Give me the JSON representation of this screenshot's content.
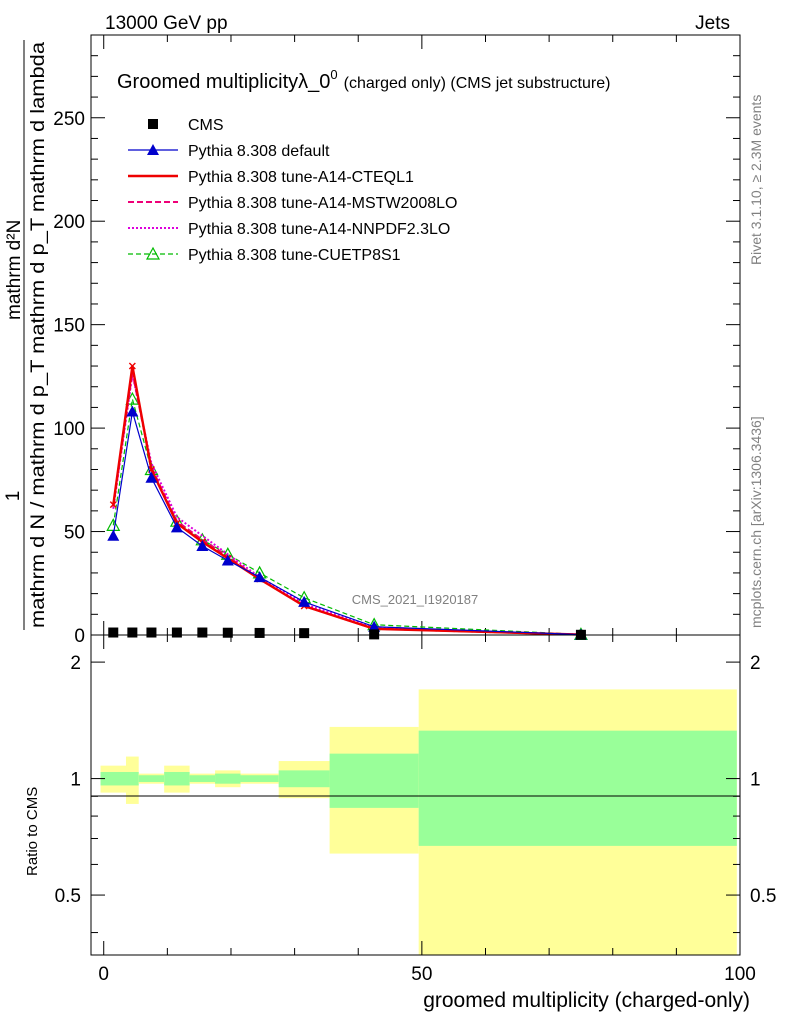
{
  "header": {
    "left": "13000 GeV pp",
    "right": "Jets"
  },
  "side": {
    "rivet": "Rivet 3.1.10, ≥ 2.3M events",
    "mcplots": "mcplots.cern.ch [arXiv:1306.3436]"
  },
  "watermark": "CMS_2021_I1920187",
  "colors": {
    "cms": "#000000",
    "default": "#0000cc",
    "cteql1": "#ee0000",
    "mstw": "#ee0077",
    "nnpdf": "#dd00dd",
    "cuetp8s1": "#00bb00",
    "band_inner": "#99ff99",
    "band_outer": "#ffff99"
  },
  "chart_data": [
    {
      "type": "line",
      "title": "Groomed multiplicityλ_0",
      "title_sup": "0",
      "title_suffix": "(charged only) (CMS jet substructure)",
      "ylabel_denominator": "mathrm d N / mathrm d p_T mathrm d p_T mathrm d lambda",
      "ylabel_numerator": "1",
      "ylabel_top": "mathrm d²N",
      "ylim": [
        0,
        290
      ],
      "xlim": [
        -2,
        100
      ],
      "yticks": [
        "0",
        "50",
        "100",
        "150",
        "200",
        "250"
      ],
      "legend_position": "top-left",
      "series": [
        {
          "name": "CMS",
          "key": "cms",
          "x": [
            1.5,
            4.5,
            7.5,
            11.5,
            15.5,
            19.5,
            24.5,
            31.5,
            42.5,
            75
          ],
          "values": [
            1.2,
            1.2,
            1.2,
            1.2,
            1.2,
            1.1,
            1.0,
            0.9,
            0.3,
            0.1
          ]
        },
        {
          "name": "Pythia 8.308 default",
          "key": "default",
          "x": [
            1.5,
            4.5,
            7.5,
            11.5,
            15.5,
            19.5,
            24.5,
            31.5,
            42.5,
            75
          ],
          "values": [
            48,
            108,
            76,
            52,
            43,
            36,
            28,
            16,
            4,
            0.2
          ]
        },
        {
          "name": "Pythia 8.308 tune-A14-CTEQL1",
          "key": "cteql1",
          "x": [
            1.5,
            4.5,
            7.5,
            11.5,
            15.5,
            19.5,
            24.5,
            31.5,
            42.5,
            75
          ],
          "values": [
            63,
            130,
            80,
            54,
            45,
            37,
            27,
            14,
            3,
            0.2
          ]
        },
        {
          "name": "Pythia 8.308 tune-A14-MSTW2008LO",
          "key": "mstw",
          "x": [
            1.5,
            4.5,
            7.5,
            11.5,
            15.5,
            19.5,
            24.5,
            31.5,
            42.5,
            75
          ],
          "values": [
            62,
            127,
            81,
            55,
            46,
            38,
            27,
            14,
            3,
            0.2
          ]
        },
        {
          "name": "Pythia 8.308 tune-A14-NNPDF2.3LO",
          "key": "nnpdf",
          "x": [
            1.5,
            4.5,
            7.5,
            11.5,
            15.5,
            19.5,
            24.5,
            31.5,
            42.5,
            75
          ],
          "values": [
            61,
            126,
            83,
            57,
            48,
            39,
            28,
            15,
            3.5,
            0.2
          ]
        },
        {
          "name": "Pythia 8.308 tune-CUETP8S1",
          "key": "cuetp8s1",
          "x": [
            1.5,
            4.5,
            7.5,
            11.5,
            15.5,
            19.5,
            24.5,
            31.5,
            42.5,
            75
          ],
          "values": [
            53,
            114,
            80,
            55,
            46,
            39,
            30,
            18,
            5,
            0.3
          ]
        }
      ]
    },
    {
      "type": "area",
      "ylabel": "Ratio to CMS",
      "xlabel": "groomed multiplicity (charged-only)",
      "xlim": [
        -2,
        100
      ],
      "ylim": [
        0.35,
        2.35
      ],
      "xticks": [
        "0",
        "50",
        "100"
      ],
      "yticks": [
        "0.5",
        "1",
        "2"
      ],
      "bins": [
        {
          "x0": -0.5,
          "x1": 3.5,
          "inner": [
            0.96,
            1.04
          ],
          "outer": [
            0.92,
            1.08
          ]
        },
        {
          "x0": 3.5,
          "x1": 5.5,
          "inner": [
            0.96,
            1.04
          ],
          "outer": [
            0.86,
            1.14
          ]
        },
        {
          "x0": 5.5,
          "x1": 9.5,
          "inner": [
            0.98,
            1.02
          ],
          "outer": [
            0.97,
            1.03
          ]
        },
        {
          "x0": 9.5,
          "x1": 13.5,
          "inner": [
            0.96,
            1.04
          ],
          "outer": [
            0.92,
            1.08
          ]
        },
        {
          "x0": 13.5,
          "x1": 17.5,
          "inner": [
            0.98,
            1.02
          ],
          "outer": [
            0.97,
            1.03
          ]
        },
        {
          "x0": 17.5,
          "x1": 21.5,
          "inner": [
            0.97,
            1.03
          ],
          "outer": [
            0.95,
            1.05
          ]
        },
        {
          "x0": 21.5,
          "x1": 27.5,
          "inner": [
            0.98,
            1.02
          ],
          "outer": [
            0.97,
            1.03
          ]
        },
        {
          "x0": 27.5,
          "x1": 35.5,
          "inner": [
            0.95,
            1.05
          ],
          "outer": [
            0.89,
            1.11
          ]
        },
        {
          "x0": 35.5,
          "x1": 49.5,
          "inner": [
            0.84,
            1.16
          ],
          "outer": [
            0.64,
            1.36
          ]
        },
        {
          "x0": 49.5,
          "x1": 99.5,
          "inner": [
            0.67,
            1.33
          ],
          "outer": [
            0.3,
            1.7
          ]
        }
      ]
    }
  ]
}
